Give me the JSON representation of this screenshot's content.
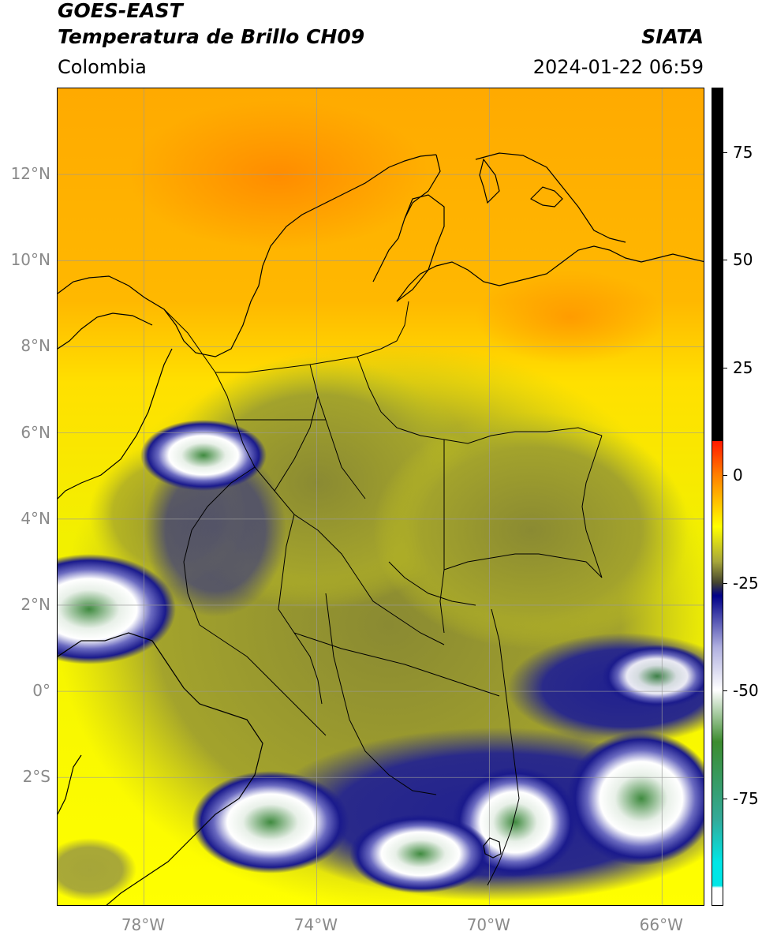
{
  "header": {
    "satellite": "GOES-EAST",
    "product": "Temperatura de Brillo CH09",
    "region": "Colombia",
    "agency": "SIATA",
    "timestamp": "2024-01-22 06:59"
  },
  "map": {
    "extent": {
      "lon_min": -80,
      "lon_max": -65,
      "lat_min": -5,
      "lat_max": 14
    },
    "lat_ticks": [
      {
        "value": 12,
        "label": "12°N"
      },
      {
        "value": 10,
        "label": "10°N"
      },
      {
        "value": 8,
        "label": "8°N"
      },
      {
        "value": 6,
        "label": "6°N"
      },
      {
        "value": 4,
        "label": "4°N"
      },
      {
        "value": 2,
        "label": "2°N"
      },
      {
        "value": 0,
        "label": "0°"
      },
      {
        "value": -2,
        "label": "2°S"
      }
    ],
    "lon_ticks": [
      {
        "value": -78,
        "label": "78°W"
      },
      {
        "value": -74,
        "label": "74°W"
      },
      {
        "value": -70,
        "label": "70°W"
      },
      {
        "value": -66,
        "label": "66°W"
      }
    ],
    "colors": {
      "warm": "#ffa200",
      "hot": "#ff8c00",
      "mid": "#ffe600",
      "olive": "#a8a82a",
      "dark_olive": "#7f7f38",
      "navy": "#1a1a8c",
      "white": "#ffffff",
      "green": "#4f8f4f"
    }
  },
  "colorbar": {
    "min": -100,
    "max": 90,
    "ticks": [
      {
        "value": 75,
        "label": "75"
      },
      {
        "value": 50,
        "label": "50"
      },
      {
        "value": 25,
        "label": "25"
      },
      {
        "value": 0,
        "label": "0"
      },
      {
        "value": -25,
        "label": "-25"
      },
      {
        "value": -50,
        "label": "-50"
      },
      {
        "value": -75,
        "label": "-75"
      }
    ],
    "stops": [
      {
        "value": 90,
        "color": "#000000"
      },
      {
        "value": 8,
        "color": "#000000"
      },
      {
        "value": 7.9,
        "color": "#ff1a00"
      },
      {
        "value": 0,
        "color": "#ff8000"
      },
      {
        "value": -12,
        "color": "#ffff00"
      },
      {
        "value": -20,
        "color": "#a8a83a"
      },
      {
        "value": -25,
        "color": "#454530"
      },
      {
        "value": -28,
        "color": "#000088"
      },
      {
        "value": -40,
        "color": "#b0b0e0"
      },
      {
        "value": -50,
        "color": "#ffffff"
      },
      {
        "value": -62,
        "color": "#3d8c2f"
      },
      {
        "value": -80,
        "color": "#33aa99"
      },
      {
        "value": -90,
        "color": "#00e6e6"
      },
      {
        "value": -95.5,
        "color": "#00e6e6"
      },
      {
        "value": -96,
        "color": "#ffffff"
      },
      {
        "value": -100,
        "color": "#ffffff"
      }
    ]
  }
}
